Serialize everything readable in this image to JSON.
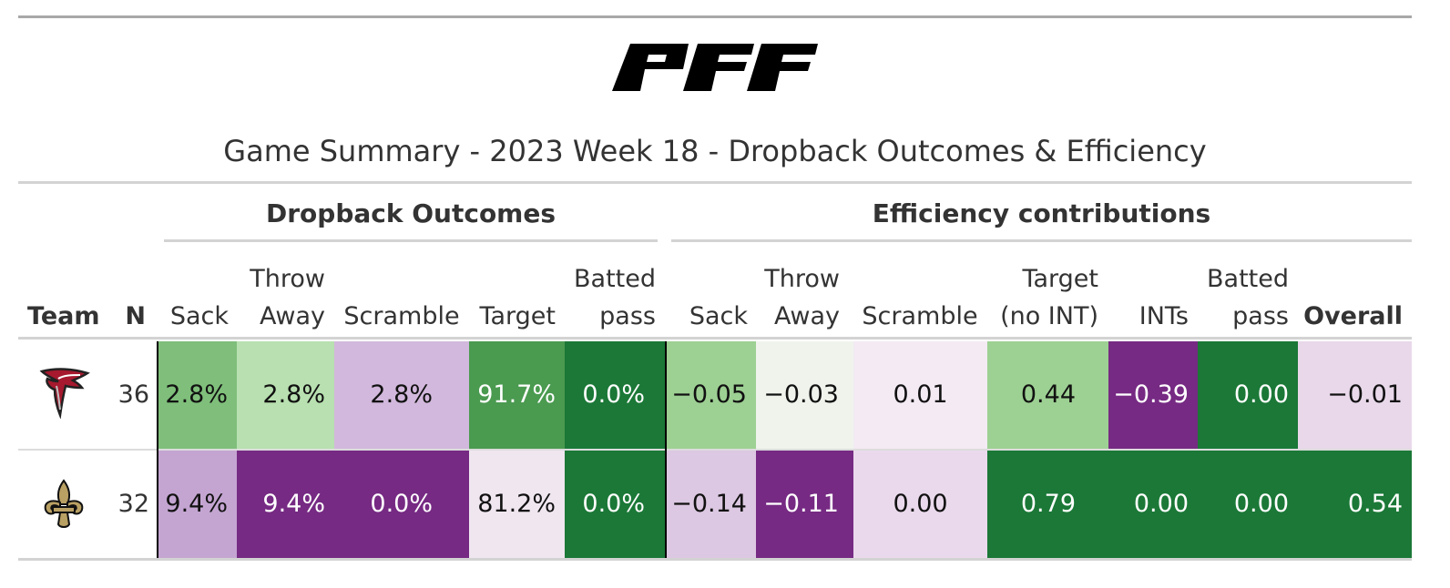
{
  "brand": {
    "logo_text": "PFF"
  },
  "title": "Game Summary - 2023 Week 18 - Dropback Outcomes & Efficiency",
  "spanners": {
    "outcomes": "Dropback Outcomes",
    "efficiency": "Efficiency contributions"
  },
  "columns": {
    "team": "Team",
    "n": "N",
    "sack": "Sack",
    "throw_away_1": "Throw",
    "throw_away_2": "Away",
    "scramble": "Scramble",
    "target": "Target",
    "batted_1": "Batted",
    "batted_2": "pass",
    "eff_sack": "Sack",
    "eff_throw_1": "Throw",
    "eff_throw_2": "Away",
    "eff_scramble": "Scramble",
    "eff_target_1": "Target",
    "eff_target_2": "(no INT)",
    "ints": "INTs",
    "eff_batted_1": "Batted",
    "eff_batted_2": "pass",
    "overall": "Overall"
  },
  "rows": [
    {
      "team_icon": "falcons-logo-icon",
      "n": "36",
      "sack": "2.8%",
      "throw_away": "2.8%",
      "scramble": "2.8%",
      "target": "91.7%",
      "batted": "0.0%",
      "eff_sack": "−0.05",
      "eff_throw_away": "−0.03",
      "eff_scramble": "0.01",
      "eff_target": "0.44",
      "ints": "−0.39",
      "eff_batted": "0.00",
      "overall": "−0.01",
      "colors": {
        "sack": "#7fbf7b",
        "throw_away": "#b8e0b0",
        "scramble": "#d2b8dc",
        "target": "#4a9a50",
        "batted": "#1b7837",
        "eff_sack": "#9dd093",
        "eff_throw_away": "#eff3ec",
        "eff_scramble": "#f3eaf3",
        "eff_target": "#9dd093",
        "ints": "#762a83",
        "eff_batted": "#1b7837",
        "overall": "#e8d8ea"
      }
    },
    {
      "team_icon": "saints-fleur-de-lis-icon",
      "n": "32",
      "sack": "9.4%",
      "throw_away": "9.4%",
      "scramble": "0.0%",
      "target": "81.2%",
      "batted": "0.0%",
      "eff_sack": "−0.14",
      "eff_throw_away": "−0.11",
      "eff_scramble": "0.00",
      "eff_target": "0.79",
      "ints": "0.00",
      "eff_batted": "0.00",
      "overall": "0.54",
      "colors": {
        "sack": "#c4a5d2",
        "throw_away": "#762a83",
        "scramble": "#762a83",
        "target": "#f0e6f0",
        "batted": "#1b7837",
        "eff_sack": "#dcc8e2",
        "eff_throw_away": "#762a83",
        "eff_scramble": "#ead9ec",
        "eff_target": "#1b7837",
        "ints": "#1b7837",
        "eff_batted": "#1b7837",
        "overall": "#1b7837"
      }
    }
  ]
}
